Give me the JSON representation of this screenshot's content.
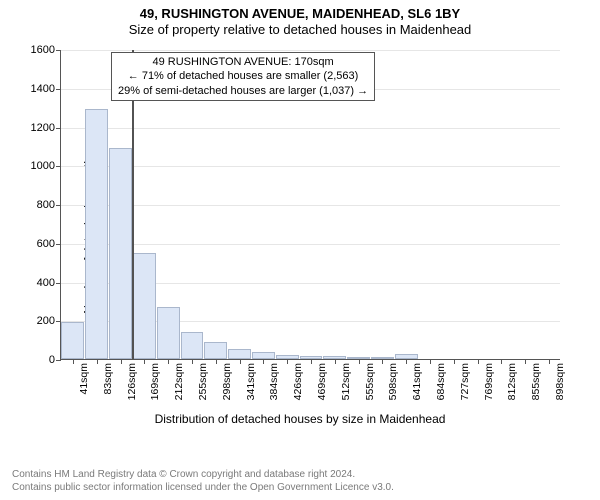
{
  "title": {
    "line1": "49, RUSHINGTON AVENUE, MAIDENHEAD, SL6 1BY",
    "line2": "Size of property relative to detached houses in Maidenhead"
  },
  "chart": {
    "type": "histogram",
    "ylabel": "Number of detached properties",
    "xlabel": "Distribution of detached houses by size in Maidenhead",
    "ylim": [
      0,
      1600
    ],
    "ytick_step": 200,
    "bar_fill": "#dce6f6",
    "bar_border": "#aab7cc",
    "grid_color": "#e6e6e6",
    "axis_color": "#555555",
    "background": "#ffffff",
    "bars": [
      {
        "label": "41sqm",
        "value": 190
      },
      {
        "label": "83sqm",
        "value": 1290
      },
      {
        "label": "126sqm",
        "value": 1090
      },
      {
        "label": "169sqm",
        "value": 545
      },
      {
        "label": "212sqm",
        "value": 270
      },
      {
        "label": "255sqm",
        "value": 140
      },
      {
        "label": "298sqm",
        "value": 90
      },
      {
        "label": "341sqm",
        "value": 50
      },
      {
        "label": "384sqm",
        "value": 35
      },
      {
        "label": "426sqm",
        "value": 20
      },
      {
        "label": "469sqm",
        "value": 18
      },
      {
        "label": "512sqm",
        "value": 15
      },
      {
        "label": "555sqm",
        "value": 10
      },
      {
        "label": "598sqm",
        "value": 5
      },
      {
        "label": "641sqm",
        "value": 25
      },
      {
        "label": "684sqm",
        "value": 0
      },
      {
        "label": "727sqm",
        "value": 0
      },
      {
        "label": "769sqm",
        "value": 0
      },
      {
        "label": "812sqm",
        "value": 0
      },
      {
        "label": "855sqm",
        "value": 0
      },
      {
        "label": "898sqm",
        "value": 0
      }
    ],
    "marker": {
      "at_index_boundary": 3,
      "color": "#525252"
    },
    "annotation": {
      "line1": "49 RUSHINGTON AVENUE: 170sqm",
      "line2": "← 71% of detached houses are smaller (2,563)",
      "line3": "29% of semi-detached houses are larger (1,037) →",
      "border_color": "#555555",
      "background": "#ffffff"
    }
  },
  "footer": {
    "line1": "Contains HM Land Registry data © Crown copyright and database right 2024.",
    "line2": "Contains public sector information licensed under the Open Government Licence v3.0."
  }
}
